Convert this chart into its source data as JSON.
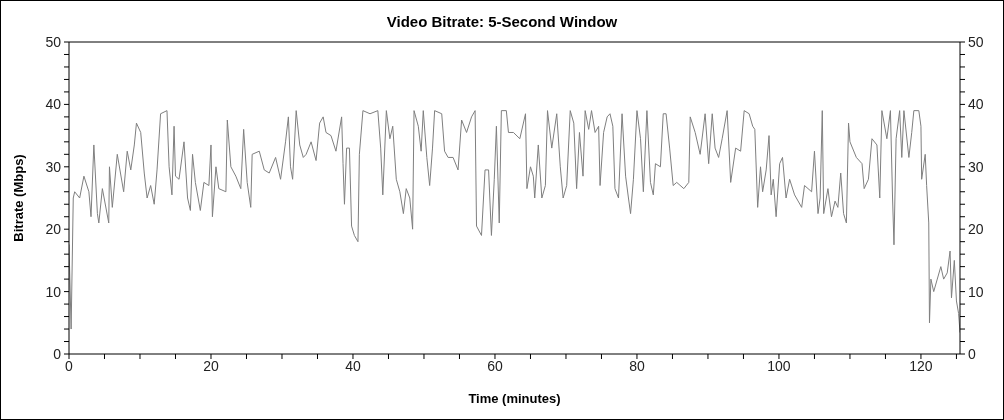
{
  "chart_data": {
    "type": "line",
    "title": "Video Bitrate: 5-Second Window",
    "xlabel": "Time (minutes)",
    "ylabel": "Bitrate (Mbps)",
    "x": [
      0.0,
      0.3,
      0.6,
      0.8,
      1.5,
      2.1,
      2.8,
      3.1,
      3.5,
      4.0,
      4.2,
      4.7,
      5.6,
      5.7,
      6.1,
      6.8,
      7.7,
      8.2,
      8.7,
      9.2,
      9.5,
      10.1,
      10.6,
      11.0,
      11.5,
      12.0,
      12.4,
      12.9,
      13.8,
      14.1,
      14.5,
      14.8,
      15.0,
      15.5,
      16.2,
      16.7,
      17.1,
      17.4,
      17.8,
      18.5,
      19.0,
      19.7,
      20.0,
      20.2,
      20.7,
      21.1,
      22.1,
      22.3,
      22.8,
      23.5,
      24.2,
      24.6,
      25.1,
      25.6,
      25.8,
      26.8,
      27.5,
      28.2,
      29.1,
      29.8,
      30.5,
      30.9,
      31.2,
      31.5,
      32.0,
      32.5,
      33.0,
      33.4,
      34.1,
      34.8,
      35.3,
      35.8,
      36.2,
      36.9,
      37.6,
      38.4,
      38.6,
      38.8,
      39.1,
      39.5,
      39.8,
      40.2,
      40.7,
      40.9,
      41.4,
      42.4,
      43.5,
      43.9,
      44.2,
      44.7,
      45.2,
      45.6,
      46.1,
      46.6,
      47.1,
      47.5,
      48.0,
      48.4,
      48.6,
      49.2,
      49.6,
      49.9,
      50.4,
      50.8,
      51.2,
      51.5,
      52.5,
      52.9,
      53.4,
      54.1,
      54.8,
      55.3,
      56.0,
      56.7,
      57.2,
      57.4,
      58.1,
      58.6,
      59.1,
      59.5,
      59.9,
      60.2,
      60.6,
      60.9,
      61.6,
      61.9,
      62.6,
      63.5,
      64.3,
      64.5,
      65.0,
      65.4,
      65.6,
      66.1,
      66.6,
      67.1,
      67.4,
      68.0,
      68.7,
      69.2,
      69.6,
      70.1,
      70.6,
      71.1,
      71.5,
      71.9,
      72.4,
      72.7,
      73.2,
      73.6,
      74.1,
      74.6,
      74.8,
      75.3,
      75.8,
      76.2,
      76.6,
      76.9,
      77.4,
      77.9,
      78.4,
      78.8,
      79.1,
      79.5,
      80.0,
      80.5,
      80.9,
      81.4,
      81.9,
      82.3,
      82.6,
      83.3,
      83.7,
      84.1,
      84.6,
      85.1,
      85.6,
      86.6,
      87.3,
      87.5,
      88.2,
      88.9,
      89.6,
      90.1,
      90.6,
      91.0,
      91.5,
      92.0,
      92.7,
      93.2,
      93.9,
      94.6,
      95.1,
      95.8,
      96.3,
      96.6,
      97.0,
      97.4,
      97.7,
      98.2,
      98.6,
      98.9,
      99.2,
      99.6,
      100.1,
      100.5,
      101.0,
      101.5,
      102.2,
      103.2,
      103.6,
      104.6,
      105.0,
      105.5,
      105.8,
      106.1,
      106.3,
      106.9,
      107.4,
      107.9,
      108.3,
      108.7,
      109.1,
      109.5,
      109.8,
      110.0,
      110.9,
      111.7,
      112.0,
      112.6,
      113.1,
      113.8,
      114.2,
      114.5,
      115.2,
      115.7,
      116.0,
      116.2,
      116.5,
      117.0,
      117.3,
      117.6,
      118.3,
      118.7,
      119.0,
      119.7,
      120.0,
      120.1,
      120.6,
      120.8,
      121.1,
      121.2,
      121.4,
      121.8,
      122.3,
      122.8,
      123.2,
      123.7,
      124.1,
      124.3,
      124.7,
      125.0,
      125.3,
      125.5
    ],
    "series": [
      {
        "color": "#7f7f7f",
        "values": [
          17.5,
          4,
          25,
          26,
          25,
          28.5,
          26,
          22,
          33.5,
          22.5,
          21,
          26.5,
          21,
          30,
          23.5,
          32,
          26,
          32.5,
          29.5,
          33.5,
          37,
          35.5,
          29,
          25,
          27,
          24,
          29.5,
          38.5,
          39,
          30,
          25.5,
          36.5,
          28.5,
          28,
          34,
          25,
          23,
          32,
          27.5,
          23,
          27.5,
          27,
          33.5,
          22,
          30,
          26.5,
          26,
          37.5,
          30,
          28.5,
          26.5,
          36,
          27.5,
          23.5,
          32,
          32.5,
          29.5,
          29,
          31.5,
          28,
          34,
          38,
          30,
          28,
          39,
          33.5,
          31.5,
          32,
          34,
          31,
          37,
          38,
          35.5,
          35,
          32.5,
          38,
          30.5,
          24,
          33,
          33,
          20.5,
          19,
          18,
          32,
          39,
          38.5,
          39,
          33,
          25.5,
          39,
          34.5,
          36.5,
          28,
          26,
          22.5,
          26.5,
          25,
          20,
          39,
          36.5,
          32.5,
          39,
          31.5,
          27,
          33,
          39,
          38.5,
          32.5,
          31.5,
          31.5,
          29.5,
          37.5,
          35.5,
          38,
          39,
          20.5,
          19,
          29.5,
          29.5,
          19,
          28,
          36.5,
          21,
          39,
          39,
          35.5,
          35.5,
          34.5,
          38.5,
          26.5,
          30,
          28.5,
          25,
          33.5,
          25,
          27,
          39,
          33,
          38.5,
          30,
          25,
          27,
          39,
          37,
          26.5,
          35.5,
          28.5,
          39,
          36,
          39,
          35.5,
          36.5,
          27,
          35.5,
          38,
          38.5,
          36.5,
          26.5,
          25,
          38.5,
          28.5,
          25,
          22.5,
          28,
          39,
          34.5,
          26,
          39,
          27.5,
          25.5,
          30.5,
          30,
          38.5,
          38.5,
          33,
          27,
          27.5,
          26.5,
          27.5,
          38,
          35.5,
          32,
          38.5,
          30.5,
          38.5,
          33,
          31.5,
          34.5,
          39,
          27.5,
          33,
          32.5,
          39,
          38.5,
          36.5,
          36,
          23.5,
          30,
          26,
          29.5,
          35,
          25.5,
          28,
          22,
          30.5,
          31.5,
          25,
          28,
          25.5,
          23.5,
          27,
          26,
          32.5,
          22.5,
          25,
          39,
          22.5,
          26.5,
          22,
          24.5,
          23.5,
          29,
          22.5,
          21,
          37,
          34,
          31.5,
          30.5,
          26.5,
          28,
          34.5,
          33.5,
          25,
          39,
          34.5,
          39,
          25,
          17.5,
          34.5,
          39,
          31.5,
          39,
          31.5,
          35.5,
          39,
          39,
          36.5,
          28,
          32,
          27,
          21,
          5,
          12,
          10,
          12,
          14,
          12,
          13,
          16.5,
          9,
          15,
          8.5,
          6.5,
          3.5
        ]
      }
    ],
    "xlim": [
      0,
      125.5
    ],
    "xticks": [
      0,
      {
        "value": 5,
        "label": null
      },
      {
        "value": 10,
        "label": null
      },
      {
        "value": 15,
        "label": null
      },
      20,
      {
        "value": 25,
        "label": null
      },
      {
        "value": 30,
        "label": null
      },
      {
        "value": 35,
        "label": null
      },
      40,
      {
        "value": 45,
        "label": null
      },
      {
        "value": 50,
        "label": null
      },
      {
        "value": 55,
        "label": null
      },
      60,
      {
        "value": 65,
        "label": null
      },
      {
        "value": 70,
        "label": null
      },
      {
        "value": 75,
        "label": null
      },
      80,
      {
        "value": 85,
        "label": null
      },
      {
        "value": 90,
        "label": null
      },
      {
        "value": 95,
        "label": null
      },
      100,
      {
        "value": 105,
        "label": null
      },
      {
        "value": 110,
        "label": null
      },
      {
        "value": 115,
        "label": null
      },
      120,
      {
        "value": 125,
        "label": null
      }
    ],
    "ylim": [
      0,
      50
    ],
    "yticks": [
      0,
      {
        "value": 2,
        "label": null
      },
      {
        "value": 4,
        "label": null
      },
      {
        "value": 6,
        "label": null
      },
      {
        "value": 8,
        "label": null
      },
      10,
      {
        "value": 12,
        "label": null
      },
      {
        "value": 14,
        "label": null
      },
      {
        "value": 16,
        "label": null
      },
      {
        "value": 18,
        "label": null
      },
      20,
      {
        "value": 22,
        "label": null
      },
      {
        "value": 24,
        "label": null
      },
      {
        "value": 26,
        "label": null
      },
      {
        "value": 28,
        "label": null
      },
      30,
      {
        "value": 32,
        "label": null
      },
      {
        "value": 34,
        "label": null
      },
      {
        "value": 36,
        "label": null
      },
      {
        "value": 38,
        "label": null
      },
      40,
      {
        "value": 42,
        "label": null
      },
      {
        "value": 44,
        "label": null
      },
      {
        "value": 46,
        "label": null
      },
      {
        "value": 48,
        "label": null
      },
      50
    ],
    "y2lim": [
      0,
      50
    ],
    "y2ticks": [
      0,
      {
        "value": 2,
        "label": null
      },
      {
        "value": 4,
        "label": null
      },
      {
        "value": 6,
        "label": null
      },
      {
        "value": 8,
        "label": null
      },
      10,
      {
        "value": 12,
        "label": null
      },
      {
        "value": 14,
        "label": null
      },
      {
        "value": 16,
        "label": null
      },
      {
        "value": 18,
        "label": null
      },
      20,
      {
        "value": 22,
        "label": null
      },
      {
        "value": 24,
        "label": null
      },
      {
        "value": 26,
        "label": null
      },
      {
        "value": 28,
        "label": null
      },
      30,
      {
        "value": 32,
        "label": null
      },
      {
        "value": 34,
        "label": null
      },
      {
        "value": 36,
        "label": null
      },
      {
        "value": 38,
        "label": null
      },
      40,
      {
        "value": 42,
        "label": null
      },
      {
        "value": 44,
        "label": null
      },
      {
        "value": 46,
        "label": null
      },
      {
        "value": 48,
        "label": null
      },
      50
    ],
    "marker": "none"
  }
}
